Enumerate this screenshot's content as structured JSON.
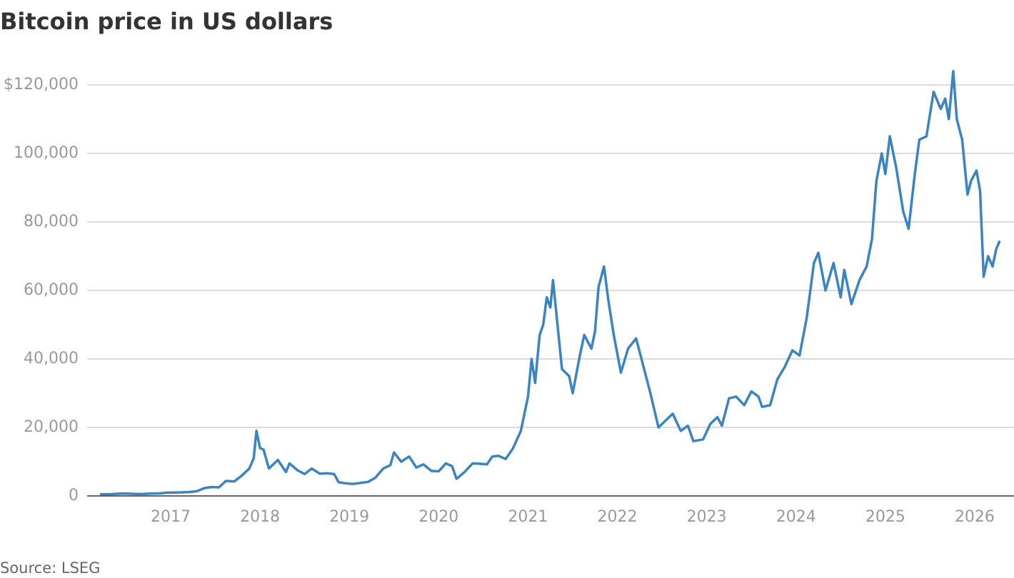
{
  "chart_data": {
    "type": "line",
    "title": "Bitcoin price in US dollars",
    "source": "Source: LSEG",
    "x": [
      2016.21,
      2016.33,
      2016.46,
      2016.54,
      2016.62,
      2016.71,
      2016.79,
      2016.88,
      2016.96,
      2017.04,
      2017.12,
      2017.21,
      2017.29,
      2017.38,
      2017.46,
      2017.54,
      2017.62,
      2017.71,
      2017.79,
      2017.88,
      2017.93,
      2017.96,
      2018.0,
      2018.04,
      2018.1,
      2018.2,
      2018.29,
      2018.33,
      2018.42,
      2018.5,
      2018.58,
      2018.67,
      2018.75,
      2018.83,
      2018.88,
      2018.96,
      2019.04,
      2019.12,
      2019.21,
      2019.29,
      2019.38,
      2019.46,
      2019.5,
      2019.58,
      2019.67,
      2019.75,
      2019.83,
      2019.92,
      2020.0,
      2020.08,
      2020.15,
      2020.2,
      2020.29,
      2020.38,
      2020.46,
      2020.54,
      2020.6,
      2020.67,
      2020.75,
      2020.83,
      2020.92,
      2021.0,
      2021.04,
      2021.08,
      2021.13,
      2021.17,
      2021.21,
      2021.25,
      2021.28,
      2021.33,
      2021.38,
      2021.46,
      2021.5,
      2021.58,
      2021.63,
      2021.71,
      2021.75,
      2021.79,
      2021.85,
      2021.9,
      2021.96,
      2022.04,
      2022.12,
      2022.21,
      2022.29,
      2022.37,
      2022.46,
      2022.54,
      2022.62,
      2022.71,
      2022.79,
      2022.85,
      2022.96,
      2023.04,
      2023.12,
      2023.17,
      2023.25,
      2023.33,
      2023.42,
      2023.5,
      2023.58,
      2023.62,
      2023.71,
      2023.79,
      2023.87,
      2023.96,
      2024.04,
      2024.12,
      2024.2,
      2024.25,
      2024.33,
      2024.42,
      2024.5,
      2024.54,
      2024.62,
      2024.71,
      2024.79,
      2024.85,
      2024.9,
      2024.96,
      2025.0,
      2025.05,
      2025.12,
      2025.2,
      2025.26,
      2025.33,
      2025.38,
      2025.46,
      2025.54,
      2025.62,
      2025.67,
      2025.71,
      2025.76,
      2025.8,
      2025.86,
      2025.92,
      2025.96,
      2026.02,
      2026.06,
      2026.1,
      2026.15,
      2026.2,
      2026.24,
      2026.28
    ],
    "values": [
      450,
      530,
      700,
      650,
      575,
      610,
      700,
      740,
      960,
      1000,
      1050,
      1150,
      1350,
      2300,
      2600,
      2500,
      4400,
      4200,
      5800,
      8000,
      11000,
      19000,
      14000,
      13500,
      8000,
      10500,
      7000,
      9500,
      7500,
      6400,
      8000,
      6500,
      6600,
      6400,
      4000,
      3700,
      3500,
      3800,
      4100,
      5300,
      8000,
      9000,
      12700,
      10000,
      11500,
      8300,
      9200,
      7300,
      7200,
      9500,
      8700,
      5000,
      7000,
      9500,
      9400,
      9200,
      11500,
      11700,
      10800,
      13800,
      19000,
      29000,
      40000,
      33000,
      47000,
      50000,
      58000,
      55000,
      63000,
      50000,
      37000,
      35000,
      30000,
      41000,
      47000,
      43000,
      48000,
      61000,
      67000,
      57000,
      47000,
      36000,
      43000,
      46000,
      38000,
      30000,
      20000,
      22000,
      24000,
      19000,
      20500,
      16000,
      16500,
      21000,
      23000,
      20500,
      28500,
      29000,
      26500,
      30500,
      29000,
      26000,
      26500,
      34000,
      37500,
      42500,
      41000,
      52000,
      68000,
      71000,
      60000,
      68000,
      58000,
      66000,
      56000,
      63000,
      67000,
      75000,
      92000,
      100000,
      94000,
      105000,
      96000,
      83000,
      78000,
      94000,
      104000,
      105000,
      118000,
      113000,
      116000,
      110000,
      124000,
      110000,
      104000,
      88000,
      92000,
      95000,
      89000,
      64000,
      70000,
      67000,
      72000,
      74500
    ],
    "color": "#3a84c1",
    "xlim": [
      2016.065,
      2026.44
    ],
    "xticks": [
      2017,
      2018,
      2019,
      2020,
      2021,
      2022,
      2023,
      2024,
      2025,
      2026
    ],
    "ylim": [
      0,
      120000
    ],
    "yticks": [
      0,
      {
        "value": 20000,
        "label": "20,000"
      },
      {
        "value": 40000,
        "label": "40,000"
      },
      {
        "value": 60000,
        "label": "60,000"
      },
      {
        "value": 80000,
        "label": "80,000"
      },
      {
        "value": 100000,
        "label": "100,000"
      },
      {
        "value": 120000,
        "label": "$120,000"
      }
    ],
    "grid": true
  }
}
